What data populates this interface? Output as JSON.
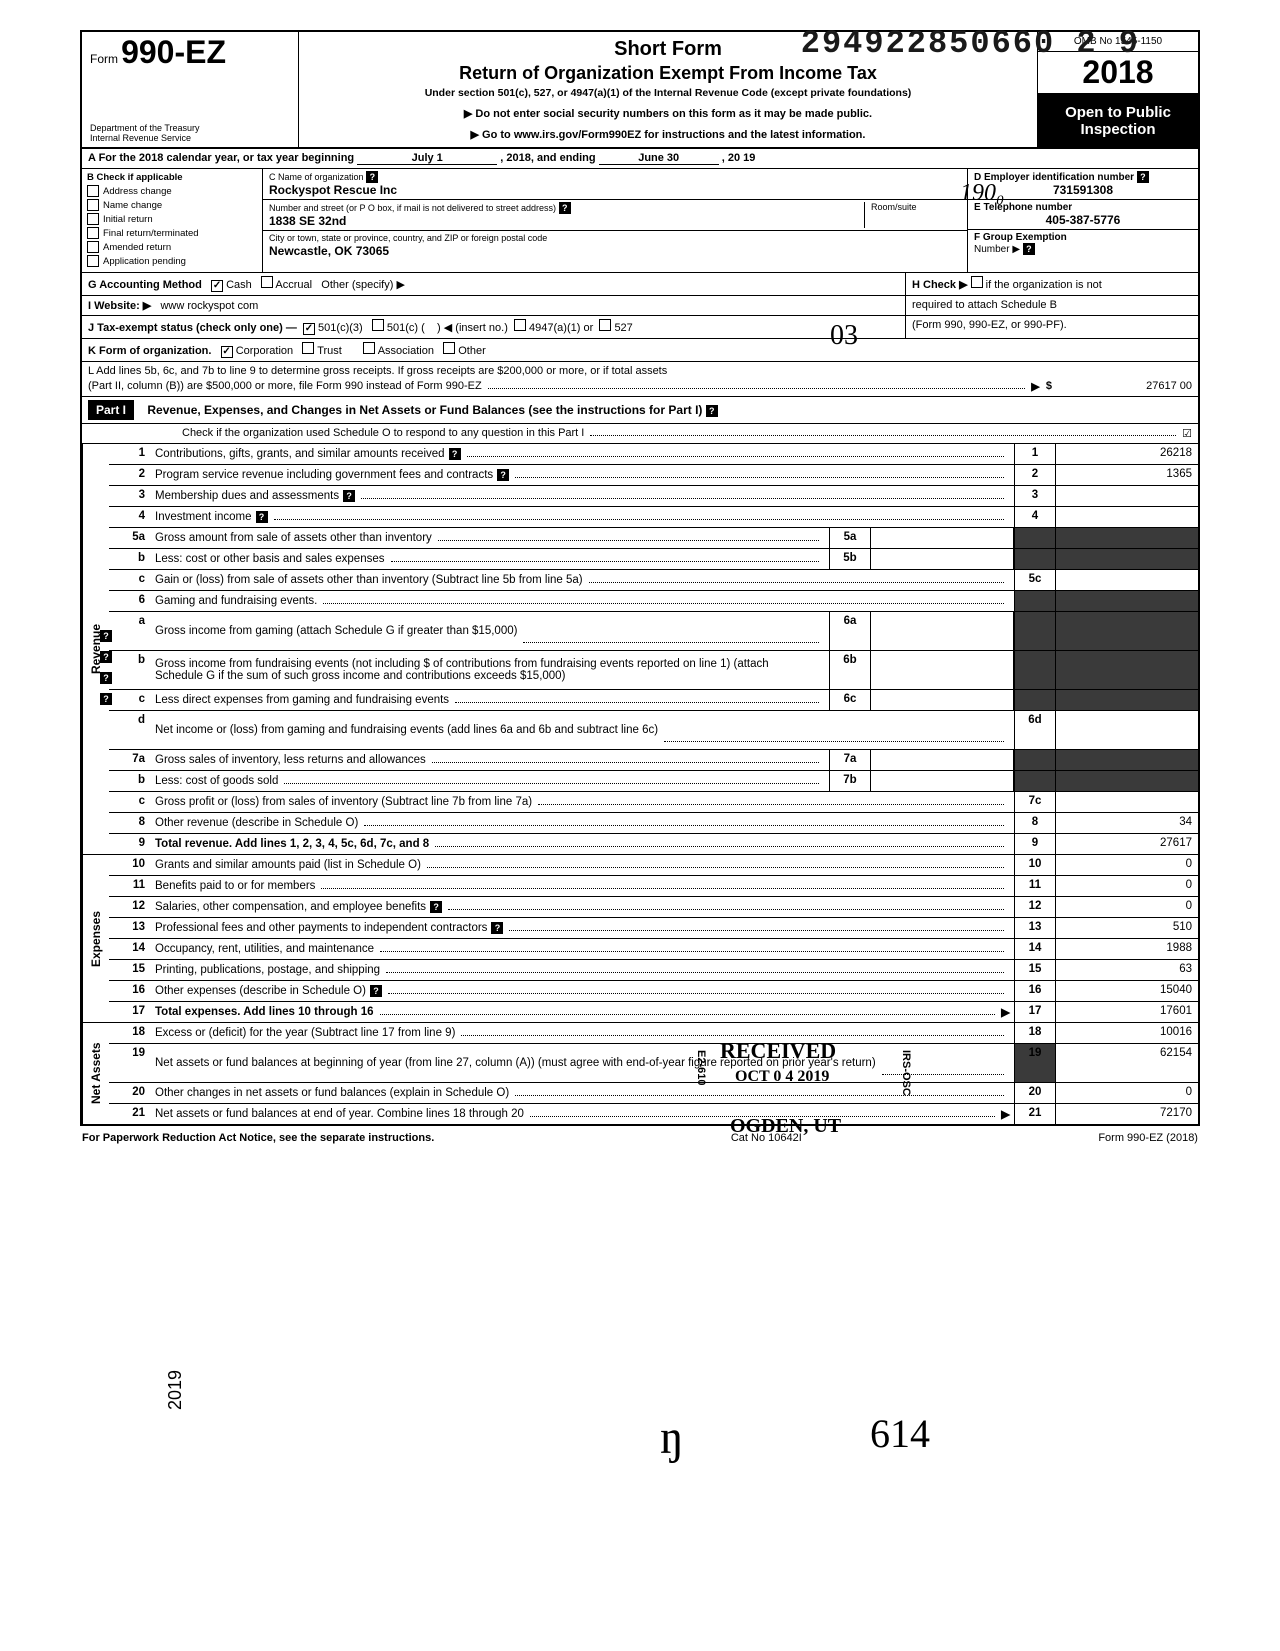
{
  "stamp_number": "294922850660 2 9",
  "header": {
    "form_prefix": "Form",
    "form_number": "990-EZ",
    "dept1": "Department of the Treasury",
    "dept2": "Internal Revenue Service",
    "title1": "Short Form",
    "title2": "Return of Organization Exempt From Income Tax",
    "subtitle": "Under section 501(c), 527, or 4947(a)(1) of the Internal Revenue Code (except private foundations)",
    "note1": "▶ Do not enter social security numbers on this form as it may be made public.",
    "note2": "▶ Go to www.irs.gov/Form990EZ for instructions and the latest information.",
    "omb": "OMB No 1545-1150",
    "year_prefix": "20",
    "year_suffix": "18",
    "open1": "Open to Public",
    "open2": "Inspection"
  },
  "rowA": {
    "label": "A For the 2018 calendar year, or tax year beginning",
    "begin": "July 1",
    "mid": ", 2018, and ending",
    "end_month": "June 30",
    "end_year": ", 20   19"
  },
  "colB": {
    "header": "B Check if applicable",
    "items": [
      "Address change",
      "Name change",
      "Initial return",
      "Final return/terminated",
      "Amended return",
      "Application pending"
    ]
  },
  "colC": {
    "name_label": "C Name of organization",
    "name_value": "Rockyspot Rescue Inc",
    "street_label": "Number and street (or P O  box, if mail is not delivered to street address)",
    "room_label": "Room/suite",
    "street_value": "1838 SE 32nd",
    "city_label": "City or town, state or province, country, and ZIP or foreign postal code",
    "city_value": "Newcastle, OK 73065"
  },
  "colDE": {
    "d_label": "D Employer identification number",
    "d_value": "731591308",
    "e_label": "E Telephone number",
    "e_value": "405-387-5776",
    "f_label": "F Group Exemption",
    "f_label2": "Number ▶"
  },
  "rowG": {
    "label": "G Accounting Method",
    "cash": "Cash",
    "accrual": "Accrual",
    "other": "Other (specify) ▶",
    "h_label": "H Check ▶",
    "h_text": "if the organization is not"
  },
  "rowI": {
    "label": "I Website: ▶",
    "value": "www rockyspot com",
    "right": "required to attach Schedule B"
  },
  "rowJ": {
    "label": "J Tax-exempt status (check only one) —",
    "opt1": "501(c)(3)",
    "opt2": "501(c) (",
    "opt2b": ") ◀ (insert no.)",
    "opt3": "4947(a)(1) or",
    "opt4": "527",
    "right": "(Form 990, 990-EZ, or 990-PF)."
  },
  "rowK": {
    "label": "K Form of organization.",
    "corp": "Corporation",
    "trust": "Trust",
    "assoc": "Association",
    "other": "Other"
  },
  "rowL": {
    "text1": "L Add lines 5b, 6c, and 7b to line 9 to determine gross receipts. If gross receipts are $200,000 or more, or if total assets",
    "text2": "(Part II, column (B)) are $500,000 or more, file Form 990 instead of Form 990-EZ",
    "arrow": "▶",
    "dollar": "$",
    "value": "27617 00"
  },
  "part1": {
    "badge": "Part I",
    "title": "Revenue, Expenses, and Changes in Net Assets or Fund Balances (see the instructions for Part I)",
    "check_line": "Check if the organization used Schedule O to respond to any question in this Part I",
    "checked": "☑"
  },
  "sections": {
    "revenue_label": "Revenue",
    "expenses_label": "Expenses",
    "netassets_label": "Net Assets"
  },
  "lines": [
    {
      "num": "1",
      "desc": "Contributions, gifts, grants, and similar amounts received",
      "rnum": "1",
      "rval": "26218",
      "q": true
    },
    {
      "num": "2",
      "desc": "Program service revenue including government fees and contracts",
      "rnum": "2",
      "rval": "1365",
      "q": true
    },
    {
      "num": "3",
      "desc": "Membership dues and assessments",
      "rnum": "3",
      "rval": "",
      "q": true
    },
    {
      "num": "4",
      "desc": "Investment income",
      "rnum": "4",
      "rval": "",
      "q": true
    },
    {
      "num": "5a",
      "desc": "Gross amount from sale of assets other than inventory",
      "midnum": "5a",
      "shaded": true
    },
    {
      "num": "b",
      "desc": "Less: cost or other basis and sales expenses",
      "midnum": "5b",
      "shaded": true
    },
    {
      "num": "c",
      "desc": "Gain or (loss) from sale of assets other than inventory (Subtract line 5b from line 5a)",
      "rnum": "5c",
      "rval": "",
      "shaded_r": true
    },
    {
      "num": "6",
      "desc": "Gaming and fundraising events.",
      "shaded_r": true,
      "noboxes": true
    },
    {
      "num": "a",
      "desc": "Gross income from gaming (attach Schedule G if greater than $15,000)",
      "midnum": "6a",
      "shaded": true,
      "multiline": true
    },
    {
      "num": "b",
      "desc": "Gross income from fundraising events (not including  $                          of contributions from fundraising events reported on line 1) (attach Schedule G if the sum of such gross income and contributions exceeds $15,000)",
      "midnum": "6b",
      "shaded": true,
      "multiline": true
    },
    {
      "num": "c",
      "desc": "Less  direct expenses from gaming and fundraising events",
      "midnum": "6c",
      "shaded": true
    },
    {
      "num": "d",
      "desc": "Net income or (loss) from gaming and fundraising events (add lines 6a and 6b and subtract line 6c)",
      "rnum": "6d",
      "rval": "",
      "multiline": true
    },
    {
      "num": "7a",
      "desc": "Gross sales of inventory, less returns and allowances",
      "midnum": "7a",
      "shaded": true
    },
    {
      "num": "b",
      "desc": "Less: cost of goods sold",
      "midnum": "7b",
      "shaded": true
    },
    {
      "num": "c",
      "desc": "Gross profit or (loss) from sales of inventory (Subtract line 7b from line 7a)",
      "rnum": "7c",
      "rval": ""
    },
    {
      "num": "8",
      "desc": "Other revenue (describe in Schedule O)",
      "rnum": "8",
      "rval": "34"
    },
    {
      "num": "9",
      "desc": "Total revenue. Add lines 1, 2, 3, 4, 5c, 6d, 7c, and 8",
      "rnum": "9",
      "rval": "27617",
      "bold": true
    },
    {
      "num": "10",
      "desc": "Grants and similar amounts paid (list in Schedule O)",
      "rnum": "10",
      "rval": "0"
    },
    {
      "num": "11",
      "desc": "Benefits paid to or for members",
      "rnum": "11",
      "rval": "0"
    },
    {
      "num": "12",
      "desc": "Salaries, other compensation, and employee benefits",
      "rnum": "12",
      "rval": "0",
      "q2": true
    },
    {
      "num": "13",
      "desc": "Professional fees and other payments to independent contractors",
      "rnum": "13",
      "rval": "510",
      "q2": true
    },
    {
      "num": "14",
      "desc": "Occupancy, rent, utilities, and maintenance",
      "rnum": "14",
      "rval": "1988"
    },
    {
      "num": "15",
      "desc": "Printing, publications, postage, and shipping",
      "rnum": "15",
      "rval": "63"
    },
    {
      "num": "16",
      "desc": "Other expenses (describe in Schedule O)",
      "rnum": "16",
      "rval": "15040",
      "q2": true
    },
    {
      "num": "17",
      "desc": "Total expenses. Add lines 10 through 16",
      "rnum": "17",
      "rval": "17601",
      "bold": true,
      "arrow": true
    },
    {
      "num": "18",
      "desc": "Excess or (deficit) for the year (Subtract line 17 from line 9)",
      "rnum": "18",
      "rval": "10016"
    },
    {
      "num": "19",
      "desc": "Net assets or fund balances at beginning of year (from line 27, column (A)) (must agree with end-of-year figure reported on prior year's return)",
      "rnum": "19",
      "rval": "62154",
      "multiline": true,
      "shaded_rnum": true
    },
    {
      "num": "20",
      "desc": "Other changes in net assets or fund balances (explain in Schedule O)",
      "rnum": "20",
      "rval": "0"
    },
    {
      "num": "21",
      "desc": "Net assets or fund balances at end of year. Combine lines 18 through 20",
      "rnum": "21",
      "rval": "72170",
      "arrow": true
    }
  ],
  "footer": {
    "left": "For Paperwork Reduction Act Notice, see the separate instructions.",
    "center": "Cat No 10642I",
    "right": "Form 990-EZ (2018)"
  },
  "stamps": {
    "received": "RECEIVED",
    "received_date": "OCT 0 4 2019",
    "ogden": "OGDEN, UT",
    "hand_03": "03",
    "hand_190": "190₀",
    "hand_initial": "ŋ",
    "hand_614": "614",
    "year_2019": "2019",
    "e2610": "E2-610",
    "irs_osc": "IRS-OSC"
  }
}
